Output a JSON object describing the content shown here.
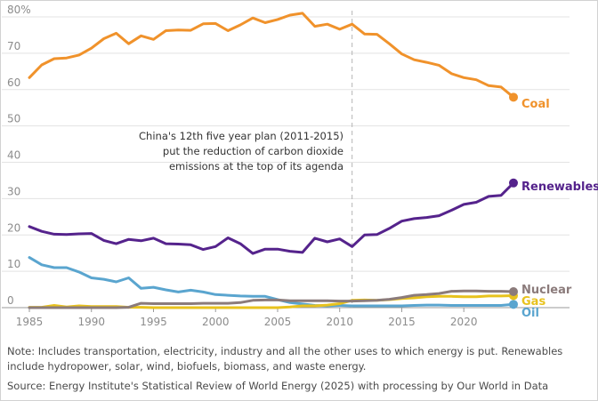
{
  "chart_data": {
    "type": "line",
    "title": "",
    "xlabel": "",
    "ylabel": "",
    "xlim": [
      1985,
      2024
    ],
    "ylim": [
      0,
      80
    ],
    "y_ticks": [
      {
        "value": 0,
        "label": "0"
      },
      {
        "value": 10,
        "label": "10"
      },
      {
        "value": 20,
        "label": "20"
      },
      {
        "value": 30,
        "label": "30"
      },
      {
        "value": 40,
        "label": "40"
      },
      {
        "value": 50,
        "label": "50"
      },
      {
        "value": 60,
        "label": "60"
      },
      {
        "value": 70,
        "label": "70"
      },
      {
        "value": 80,
        "label": "80%"
      }
    ],
    "x_ticks": [
      {
        "value": 1985,
        "label": "1985"
      },
      {
        "value": 1990,
        "label": "1990"
      },
      {
        "value": 1995,
        "label": "1995"
      },
      {
        "value": 2000,
        "label": "2000"
      },
      {
        "value": 2005,
        "label": "2005"
      },
      {
        "value": 2010,
        "label": "2010"
      },
      {
        "value": 2015,
        "label": "2015"
      },
      {
        "value": 2020,
        "label": "2020"
      }
    ],
    "grid": "horizontal",
    "legend": "direct labels at line ends (right)",
    "x": [
      1985,
      1986,
      1987,
      1988,
      1989,
      1990,
      1991,
      1992,
      1993,
      1994,
      1995,
      1996,
      1997,
      1998,
      1999,
      2000,
      2001,
      2002,
      2003,
      2004,
      2005,
      2006,
      2007,
      2008,
      2009,
      2010,
      2011,
      2012,
      2013,
      2014,
      2015,
      2016,
      2017,
      2018,
      2019,
      2020,
      2021,
      2022,
      2023,
      2024
    ],
    "series": [
      {
        "name": "Coal",
        "color": "#f0922b",
        "values": [
          63.3,
          66.8,
          68.5,
          68.7,
          69.5,
          71.4,
          74.0,
          75.5,
          72.6,
          74.8,
          73.8,
          76.2,
          76.4,
          76.3,
          78.1,
          78.2,
          76.2,
          77.8,
          79.7,
          78.4,
          79.3,
          80.5,
          81.0,
          77.4,
          78.0,
          76.6,
          78.0,
          75.3,
          75.2,
          72.6,
          69.8,
          68.2,
          67.5,
          66.7,
          64.4,
          63.3,
          62.7,
          61.1,
          60.7,
          57.9
        ]
      },
      {
        "name": "Renewables",
        "color": "#55238c",
        "values": [
          22.3,
          21.0,
          20.2,
          20.1,
          20.3,
          20.4,
          18.5,
          17.6,
          18.8,
          18.4,
          19.1,
          17.6,
          17.5,
          17.3,
          16.0,
          16.8,
          19.2,
          17.6,
          14.9,
          16.1,
          16.1,
          15.5,
          15.2,
          19.1,
          18.1,
          18.9,
          16.8,
          20.0,
          20.1,
          21.8,
          23.8,
          24.5,
          24.8,
          25.3,
          26.8,
          28.4,
          29.0,
          30.6,
          30.9,
          34.3
        ]
      },
      {
        "name": "Nuclear",
        "color": "#8b7b7b",
        "values": [
          0,
          0,
          0,
          0,
          0,
          0,
          0,
          0,
          0.1,
          1.2,
          1.1,
          1.1,
          1.1,
          1.1,
          1.2,
          1.2,
          1.2,
          1.4,
          2.0,
          2.1,
          2.1,
          1.9,
          1.9,
          1.9,
          1.9,
          1.8,
          1.8,
          1.9,
          2.0,
          2.3,
          2.8,
          3.4,
          3.6,
          3.9,
          4.5,
          4.6,
          4.6,
          4.5,
          4.5,
          4.4
        ]
      },
      {
        "name": "Gas",
        "color": "#e8c21d",
        "values": [
          0.1,
          0.1,
          0.6,
          0.2,
          0.5,
          0.3,
          0.3,
          0.3,
          0.1,
          0.1,
          0,
          0,
          0,
          0,
          0,
          0,
          0,
          0,
          0,
          0,
          0,
          0.2,
          0.5,
          0.5,
          0.7,
          1.1,
          2.0,
          2.1,
          2.0,
          2.2,
          2.5,
          2.7,
          3.0,
          3.1,
          3.1,
          3.0,
          3.0,
          3.2,
          3.2,
          3.3
        ]
      },
      {
        "name": "Oil",
        "color": "#5aa5cf",
        "values": [
          13.8,
          11.8,
          11.0,
          11.0,
          9.8,
          8.2,
          7.8,
          7.1,
          8.2,
          5.3,
          5.6,
          4.9,
          4.3,
          4.8,
          4.3,
          3.6,
          3.4,
          3.2,
          3.1,
          3.1,
          2.2,
          1.4,
          1.0,
          0.6,
          0.5,
          0.6,
          0.5,
          0.5,
          0.5,
          0.5,
          0.5,
          0.6,
          0.7,
          0.7,
          0.6,
          0.6,
          0.6,
          0.6,
          0.6,
          0.9
        ]
      }
    ],
    "reference_line": {
      "x": 2011
    },
    "annotation": [
      "China's 12th five year plan (2011-2015)",
      "put the reduction of carbon dioxide",
      "emissions at the top of its agenda"
    ]
  },
  "notes": {
    "note": "Note: Includes transportation, electricity, industry and all the other uses to which energy is put. Renewables include hydropower, solar, wind, biofuels, biomass, and waste energy.",
    "source": "Source: Energy Institute's Statistical Review of World Energy (2025) with processing by Our World in Data"
  }
}
